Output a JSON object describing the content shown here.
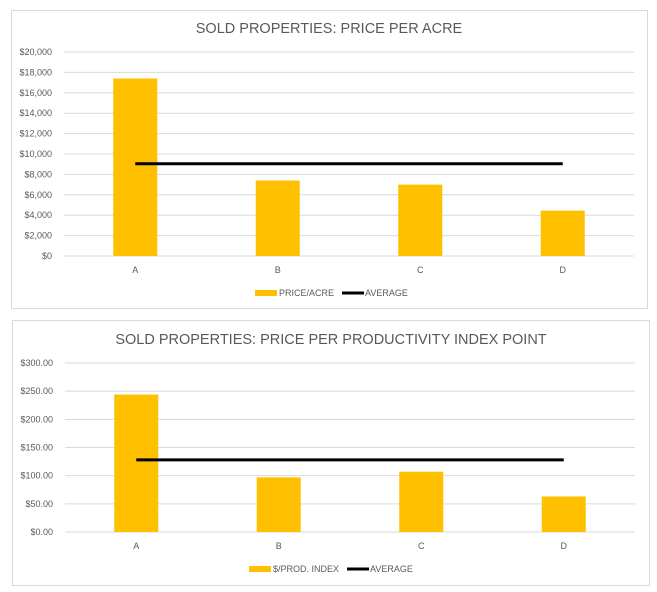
{
  "chart_data": [
    {
      "type": "bar",
      "title": "SOLD PROPERTIES: PRICE PER ACRE",
      "categories": [
        "A",
        "B",
        "C",
        "D"
      ],
      "ylim": [
        0,
        20000
      ],
      "yticks": [
        "$0",
        "$2,000",
        "$4,000",
        "$6,000",
        "$8,000",
        "$10,000",
        "$12,000",
        "$14,000",
        "$16,000",
        "$18,000",
        "$20,000"
      ],
      "series": [
        {
          "name": "PRICE/ACRE",
          "type": "bar",
          "color": "#FFC000",
          "values": [
            17400,
            7400,
            7000,
            4450
          ]
        },
        {
          "name": "AVERAGE",
          "type": "line",
          "color": "#000000",
          "values": [
            9050,
            9050,
            9050,
            9050
          ]
        }
      ],
      "grid": true,
      "legend": "bottom"
    },
    {
      "type": "bar",
      "title": "SOLD PROPERTIES: PRICE PER PRODUCTIVITY INDEX  POINT",
      "categories": [
        "A",
        "B",
        "C",
        "D"
      ],
      "ylim": [
        0,
        300
      ],
      "yticks": [
        "$0.00",
        "$50.00",
        "$100.00",
        "$150.00",
        "$200.00",
        "$250.00",
        "$300.00"
      ],
      "series": [
        {
          "name": "$/PROD. INDEX",
          "type": "bar",
          "color": "#FFC000",
          "values": [
            244,
            97,
            107,
            63
          ]
        },
        {
          "name": "AVERAGE",
          "type": "line",
          "color": "#000000",
          "values": [
            128,
            128,
            128,
            128
          ]
        }
      ],
      "grid": true,
      "legend": "bottom"
    }
  ]
}
